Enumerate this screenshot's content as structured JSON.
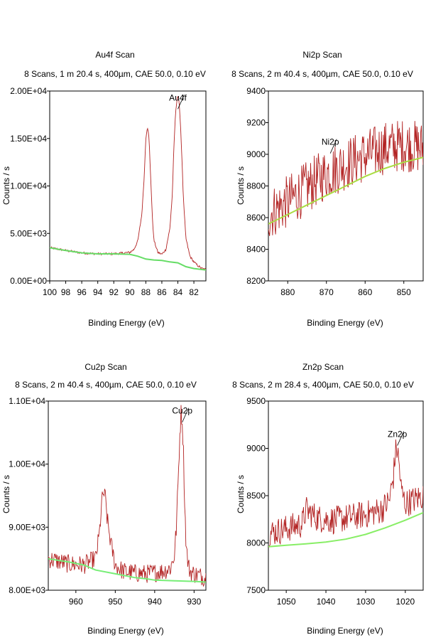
{
  "chart_data": [
    {
      "type": "line",
      "title": "Au4f Scan",
      "subtitle": "8 Scans,  1 m 20.4 s,  400µm,  CAE 50.0,  0.10 eV",
      "xlabel": "Binding Energy (eV)",
      "ylabel": "Counts / s",
      "xlim": [
        100,
        80.5
      ],
      "ylim": [
        0,
        20000
      ],
      "x_reversed": true,
      "grid": false,
      "x_ticks": [
        100,
        98,
        96,
        94,
        92,
        90,
        88,
        86,
        84,
        82
      ],
      "x_tick_labels": [
        "100",
        "98",
        "96",
        "94",
        "92",
        "90",
        "88",
        "86",
        "84",
        "82"
      ],
      "y_ticks": [
        0,
        5000,
        10000,
        15000,
        20000
      ],
      "y_tick_labels": [
        "0.00E+00",
        "5.00E+03",
        "1.00E+04",
        "1.50E+04",
        "2.00E+04"
      ],
      "peak_label": {
        "text": "Au4f",
        "x": 84.0,
        "y": 19000
      },
      "noise": 120,
      "series": [
        {
          "color": "#b22222",
          "x": [
            100,
            98,
            96,
            94,
            92,
            90,
            89.5,
            89,
            88.5,
            88.2,
            88.0,
            87.8,
            87.6,
            87.4,
            87.2,
            87.0,
            86.5,
            86.0,
            85.5,
            85.0,
            84.7,
            84.5,
            84.3,
            84.1,
            84.0,
            83.9,
            83.7,
            83.5,
            83.3,
            83.0,
            82.5,
            82.0,
            81.5,
            81.0,
            80.5
          ],
          "y": [
            3500,
            3200,
            2950,
            2850,
            2850,
            3000,
            3300,
            4200,
            7000,
            11000,
            15000,
            16300,
            15000,
            11000,
            7000,
            4300,
            3000,
            2800,
            3300,
            5500,
            9000,
            14000,
            17500,
            19200,
            19500,
            19200,
            17000,
            13000,
            8500,
            4500,
            2600,
            2000,
            1600,
            1300,
            1200
          ]
        },
        {
          "color": "#66dd66",
          "x": [
            100,
            98,
            96,
            94,
            92,
            90,
            89,
            88,
            87,
            86,
            85,
            84,
            83,
            82,
            81,
            80.5
          ],
          "y": [
            3500,
            3200,
            2950,
            2850,
            2850,
            2800,
            2600,
            2300,
            2200,
            2150,
            2000,
            1900,
            1500,
            1300,
            1200,
            1150
          ]
        }
      ]
    },
    {
      "type": "line",
      "title": "Ni2p Scan",
      "subtitle": "8 Scans,  2 m 40.4 s,  400µm,  CAE 50.0,  0.10 eV",
      "xlabel": "Binding Energy (eV)",
      "ylabel": "Counts / s",
      "xlim": [
        885,
        845
      ],
      "ylim": [
        8200,
        9400
      ],
      "x_reversed": true,
      "grid": false,
      "x_ticks": [
        880,
        870,
        860,
        850
      ],
      "x_tick_labels": [
        "880",
        "870",
        "860",
        "850"
      ],
      "y_ticks": [
        8200,
        8400,
        8600,
        8800,
        9000,
        9200,
        9400
      ],
      "y_tick_labels": [
        "8200",
        "8400",
        "8600",
        "8800",
        "9000",
        "9200",
        "9400"
      ],
      "peak_label": {
        "text": "Ni2p",
        "x": 869.0,
        "y": 9060
      },
      "noise": 170,
      "series": [
        {
          "color": "#b22222",
          "x": [
            885,
            880,
            875,
            870,
            865,
            860,
            855,
            850,
            845
          ],
          "y": [
            8620,
            8700,
            8790,
            8880,
            8940,
            8990,
            9040,
            9060,
            9040
          ]
        },
        {
          "color": "#aadd44",
          "x": [
            885,
            880,
            875,
            870,
            865,
            860,
            855,
            850,
            845
          ],
          "y": [
            8560,
            8620,
            8680,
            8740,
            8800,
            8860,
            8910,
            8950,
            8980
          ]
        }
      ]
    },
    {
      "type": "line",
      "title": "Cu2p Scan",
      "subtitle": "8 Scans,  2 m 40.4 s,  400µm,  CAE 50.0,  0.10 eV",
      "xlabel": "Binding Energy (eV)",
      "ylabel": "Counts / s",
      "xlim": [
        967,
        927
      ],
      "ylim": [
        8000,
        11000
      ],
      "x_reversed": true,
      "grid": false,
      "x_ticks": [
        960,
        950,
        940,
        930
      ],
      "x_tick_labels": [
        "960",
        "950",
        "940",
        "930"
      ],
      "y_ticks": [
        8000,
        9000,
        10000,
        11000
      ],
      "y_tick_labels": [
        "8.00E+03",
        "9.00E+03",
        "1.00E+04",
        "1.10E+04"
      ],
      "peak_label": {
        "text": "Cu2p",
        "x": 933.0,
        "y": 10800
      },
      "noise": 150,
      "series": [
        {
          "color": "#b22222",
          "x": [
            967,
            962,
            958,
            955,
            954,
            953.5,
            953,
            952.5,
            952,
            951,
            950,
            948,
            945,
            942,
            940,
            938,
            936,
            935,
            934.5,
            934,
            933.6,
            933.3,
            933.0,
            932.7,
            932.4,
            932.0,
            931.5,
            931,
            930,
            928,
            927
          ],
          "y": [
            8500,
            8420,
            8400,
            8500,
            8900,
            9350,
            9550,
            9450,
            9100,
            8700,
            8400,
            8300,
            8270,
            8260,
            8280,
            8300,
            8350,
            8550,
            9000,
            9800,
            10500,
            10820,
            10700,
            10200,
            9400,
            8700,
            8400,
            8300,
            8260,
            8220,
            8200
          ]
        },
        {
          "color": "#77ee77",
          "x": [
            967,
            962,
            958,
            955,
            950,
            945,
            942,
            940,
            935,
            930,
            927
          ],
          "y": [
            8500,
            8450,
            8400,
            8320,
            8260,
            8200,
            8180,
            8160,
            8150,
            8140,
            8130
          ]
        }
      ]
    },
    {
      "type": "line",
      "title": "Zn2p Scan",
      "subtitle": "8 Scans,  2 m 28.4 s,  400µm,  CAE 50.0,  0.10 eV",
      "xlabel": "Binding Energy (eV)",
      "ylabel": "Counts / s",
      "xlim": [
        1054.5,
        1015.5
      ],
      "ylim": [
        7500,
        9500
      ],
      "x_reversed": true,
      "grid": false,
      "x_ticks": [
        1050,
        1040,
        1030,
        1020
      ],
      "x_tick_labels": [
        "1050",
        "1040",
        "1030",
        "1020"
      ],
      "y_ticks": [
        7500,
        8000,
        8500,
        9000,
        9500
      ],
      "y_tick_labels": [
        "7500",
        "8000",
        "8500",
        "9000",
        "9500"
      ],
      "peak_label": {
        "text": "Zn2p",
        "x": 1022.0,
        "y": 9120
      },
      "noise": 150,
      "series": [
        {
          "color": "#b22222",
          "x": [
            1054.5,
            1050,
            1046,
            1045,
            1042,
            1038,
            1034,
            1030,
            1026,
            1024,
            1023,
            1022.5,
            1022,
            1021.5,
            1021,
            1020,
            1018,
            1015.5
          ],
          "y": [
            8100,
            8150,
            8200,
            8350,
            8260,
            8240,
            8270,
            8300,
            8350,
            8450,
            8700,
            8950,
            9000,
            8800,
            8550,
            8420,
            8450,
            8500
          ]
        },
        {
          "color": "#88ee66",
          "x": [
            1054.5,
            1050,
            1045,
            1040,
            1035,
            1030,
            1025,
            1020,
            1015.5
          ],
          "y": [
            7960,
            7975,
            7990,
            8010,
            8040,
            8090,
            8160,
            8240,
            8320
          ]
        }
      ]
    }
  ]
}
